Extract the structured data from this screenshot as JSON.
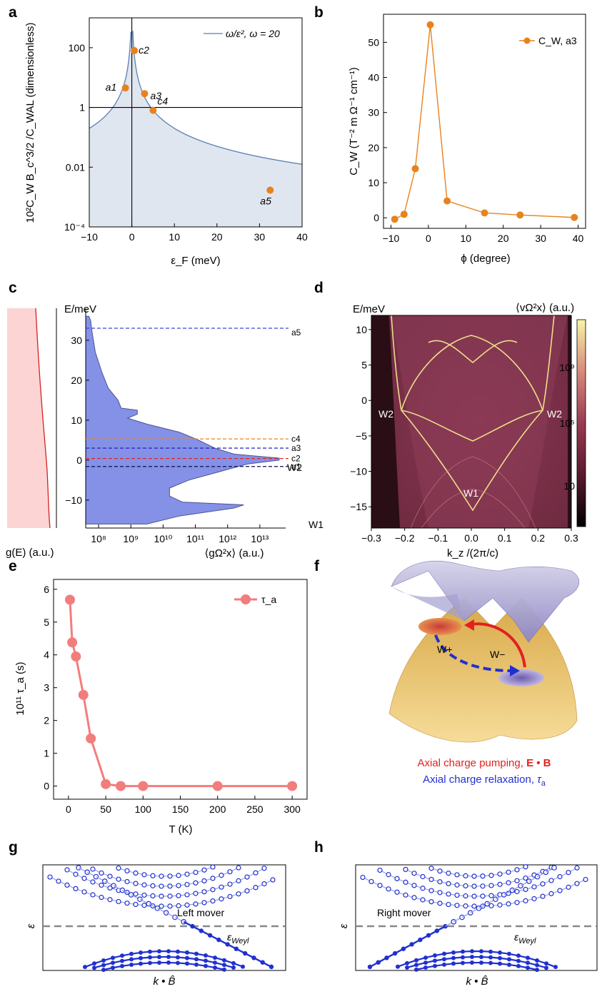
{
  "panels": {
    "a": {
      "label": "a"
    },
    "b": {
      "label": "b"
    },
    "c": {
      "label": "c"
    },
    "d": {
      "label": "d"
    },
    "e": {
      "label": "e"
    },
    "f": {
      "label": "f"
    },
    "g": {
      "label": "g"
    },
    "h": {
      "label": "h"
    }
  },
  "colors": {
    "orange": "#e8821e",
    "steel": "#5b7fb0",
    "fill_blue": "#e0e6f0",
    "dos_blue": "#8591e6",
    "dos_red": "#d62020",
    "dos_pink": "#fcd4d4",
    "salmon": "#f27d7d",
    "lattice_blue": "#2030d0",
    "red_line": "#e32020",
    "dash_gray": "#888888"
  },
  "chart_data": [
    {
      "panel": "a",
      "type": "scatter",
      "xlabel": "ε_F (meV)",
      "ylabel": "10²C_W B_c^3/2 /C_WAL (dimensionless)",
      "xlim": [
        -10,
        40
      ],
      "ylim_log10": [
        -4,
        3
      ],
      "yscale": "log",
      "xticks": [
        "−10",
        "0",
        "10",
        "20",
        "30",
        "40"
      ],
      "yticks": [
        "10⁻⁴",
        "0.01",
        "1",
        "100"
      ],
      "legend": "ω/ε², ω = 20",
      "legend_position": "top-right",
      "curve": "ω/ε², ω = 20",
      "points": [
        {
          "label": "a1",
          "x": -1.5,
          "y": 4.5
        },
        {
          "label": "c2",
          "x": 0.6,
          "y": 80
        },
        {
          "label": "a3",
          "x": 3.0,
          "y": 2.9
        },
        {
          "label": "c4",
          "x": 5.0,
          "y": 0.8
        },
        {
          "label": "a5",
          "x": 32.5,
          "y": 0.0017
        }
      ]
    },
    {
      "panel": "b",
      "type": "line",
      "xlabel": "ϕ (degree)",
      "ylabel": "C_W (T⁻² m Ω⁻¹ cm⁻¹)",
      "xlim": [
        -12,
        42
      ],
      "ylim": [
        -3,
        58
      ],
      "xticks": [
        "−10",
        "0",
        "10",
        "20",
        "30",
        "40"
      ],
      "yticks": [
        "0",
        "10",
        "20",
        "30",
        "40",
        "50"
      ],
      "legend": "C_W, a3",
      "legend_position": "top-right",
      "x": [
        -9,
        -6.5,
        -3.5,
        0.5,
        5,
        15,
        24.5,
        39
      ],
      "y": [
        -0.4,
        1.0,
        14.0,
        55.0,
        4.8,
        1.4,
        0.8,
        0.1
      ]
    },
    {
      "panel": "c",
      "type": "area",
      "ylabel": "E/meV",
      "xlabel": "⟨gΩ²x⟩ (a.u.)",
      "side_label": "g(E) (a.u.)",
      "xscale": "log",
      "xticks": [
        "10⁸",
        "10⁹",
        "10¹⁰",
        "10¹¹",
        "10¹²",
        "10¹³"
      ],
      "yticks": [
        "−10",
        "0",
        "10",
        "20",
        "30"
      ],
      "ylim": [
        -17,
        38
      ],
      "levels": [
        {
          "name": "a5",
          "E": 33,
          "color": "#4040e0"
        },
        {
          "name": "c4",
          "E": 5.3,
          "color": "#e8821e"
        },
        {
          "name": "a3",
          "E": 3.0,
          "color": "#2020c0"
        },
        {
          "name": "c2",
          "E": 0.4,
          "color": "#e02020"
        },
        {
          "name": "a1",
          "E": -1.6,
          "color": "#101050"
        }
      ],
      "annotations": [
        "W2",
        "W1"
      ]
    },
    {
      "panel": "d",
      "type": "heatmap",
      "ylabel": "E/meV",
      "xlabel": "k_z /(2π/c)",
      "colorbar_label": "⟨vΩ²x⟩ (a.u.)",
      "xlim": [
        -0.3,
        0.3
      ],
      "ylim": [
        -18,
        12
      ],
      "xticks": [
        "−0.3",
        "−0.2",
        "−0.1",
        "0.0",
        "0.1",
        "0.2",
        "0.3"
      ],
      "yticks": [
        "10",
        "5",
        "0",
        "−5",
        "−10",
        "−15"
      ],
      "colorbar_ticks": [
        "10⁹",
        "10⁵",
        "10"
      ],
      "annotations": [
        "W2",
        "W2",
        "W1"
      ]
    },
    {
      "panel": "e",
      "type": "line",
      "xlabel": "T (K)",
      "ylabel": "10¹¹ τ_a (s)",
      "xlim": [
        -20,
        320
      ],
      "ylim": [
        -0.4,
        6.3
      ],
      "xticks": [
        "0",
        "50",
        "100",
        "150",
        "200",
        "250",
        "300"
      ],
      "yticks": [
        "0",
        "1",
        "2",
        "3",
        "4",
        "5",
        "6"
      ],
      "legend": "τ_a",
      "legend_position": "top-right",
      "x": [
        2,
        5,
        10,
        20,
        30,
        50,
        70,
        100,
        200,
        300
      ],
      "y": [
        5.68,
        4.38,
        3.95,
        2.78,
        1.45,
        0.06,
        0.0,
        0.0,
        0.0,
        0.0
      ]
    }
  ],
  "panel_f": {
    "nodes": [
      "W+",
      "W−"
    ],
    "caption_1_text": "Axial charge pumping, ",
    "caption_1_bold": "E • B",
    "caption_2_text": "Axial charge relaxation, ",
    "caption_2_sym": "τ",
    "caption_2_sub": "a"
  },
  "panel_g": {
    "ylabel": "ε",
    "xlabel": "k • B̂",
    "mover_label": "Left mover",
    "weyl_label": "ε",
    "weyl_sub": "Weyl"
  },
  "panel_h": {
    "ylabel": "ε",
    "xlabel": "k • B̂",
    "mover_label": "Right mover",
    "weyl_label": "ε",
    "weyl_sub": "Weyl"
  }
}
